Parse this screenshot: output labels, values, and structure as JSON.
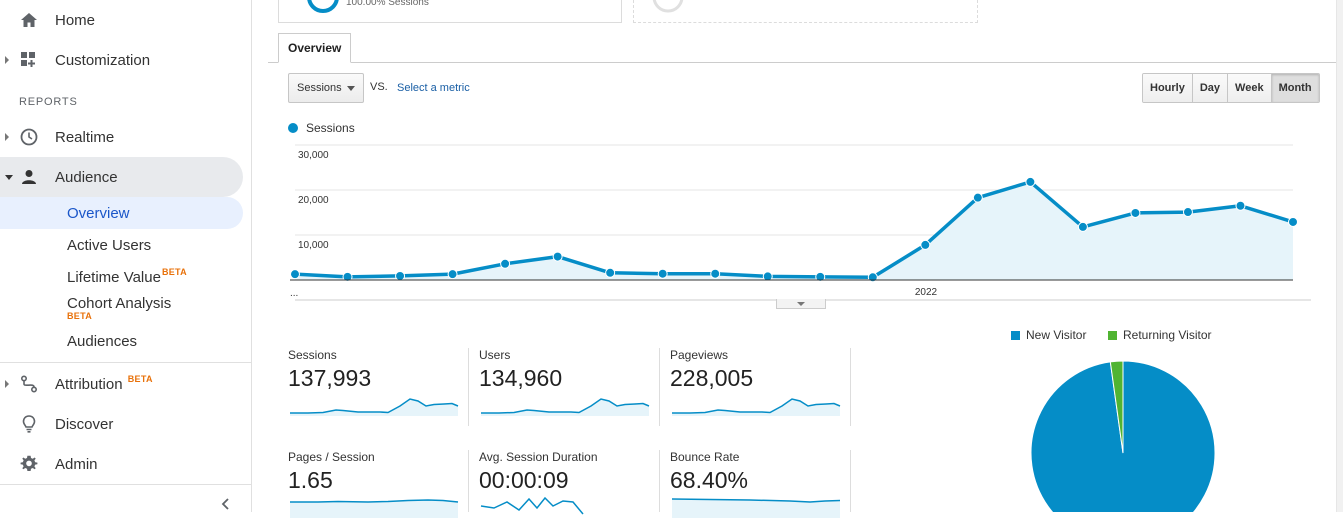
{
  "sidebar": {
    "items_top": [
      {
        "label": "Home",
        "icon": "home-icon"
      },
      {
        "label": "Customization",
        "icon": "dashboard-plus-icon"
      }
    ],
    "reports_label": "REPORTS",
    "realtime_label": "Realtime",
    "audience_label": "Audience",
    "audience_subitems": [
      {
        "label": "Overview"
      },
      {
        "label": "Active Users"
      },
      {
        "label": "Lifetime Value",
        "badge": "BETA"
      },
      {
        "label": "Cohort Analysis",
        "badge": "BETA"
      },
      {
        "label": "Audiences"
      }
    ],
    "attribution_label": "Attribution",
    "attribution_badge": "BETA",
    "discover_label": "Discover",
    "admin_label": "Admin"
  },
  "top_card": {
    "text": "100.00% Sessions"
  },
  "tabs": {
    "overview": "Overview"
  },
  "controls": {
    "metric_selected": "Sessions",
    "vs": "VS.",
    "select_metric": "Select a metric",
    "periods": [
      "Hourly",
      "Day",
      "Week",
      "Month"
    ],
    "active_period": "Month"
  },
  "chart_data": {
    "type": "area",
    "series": [
      {
        "name": "Sessions",
        "values": [
          1300,
          700,
          900,
          1300,
          3600,
          5200,
          1600,
          1400,
          1400,
          800,
          700,
          600,
          7800,
          18300,
          21800,
          11800,
          14900,
          15100,
          16500,
          12900
        ]
      }
    ],
    "x_tick_labels": [
      "...",
      "2022"
    ],
    "y_tick_labels": [
      "30,000",
      "20,000",
      "10,000"
    ],
    "ylim": [
      0,
      30000
    ],
    "grid": true,
    "legend": "top-left",
    "color": "#058dc7",
    "fill_color": "#e6f4fa"
  },
  "metrics": [
    {
      "label": "Sessions",
      "value": "137,993"
    },
    {
      "label": "Users",
      "value": "134,960"
    },
    {
      "label": "Pageviews",
      "value": "228,005"
    },
    {
      "label": "Pages / Session",
      "value": "1.65"
    },
    {
      "label": "Avg. Session Duration",
      "value": "00:00:09"
    },
    {
      "label": "Bounce Rate",
      "value": "68.40%"
    }
  ],
  "pie": {
    "legend": [
      {
        "label": "New Visitor",
        "color": "#058dc7"
      },
      {
        "label": "Returning Visitor",
        "color": "#50b432"
      }
    ],
    "values": [
      97.8,
      2.2
    ]
  }
}
